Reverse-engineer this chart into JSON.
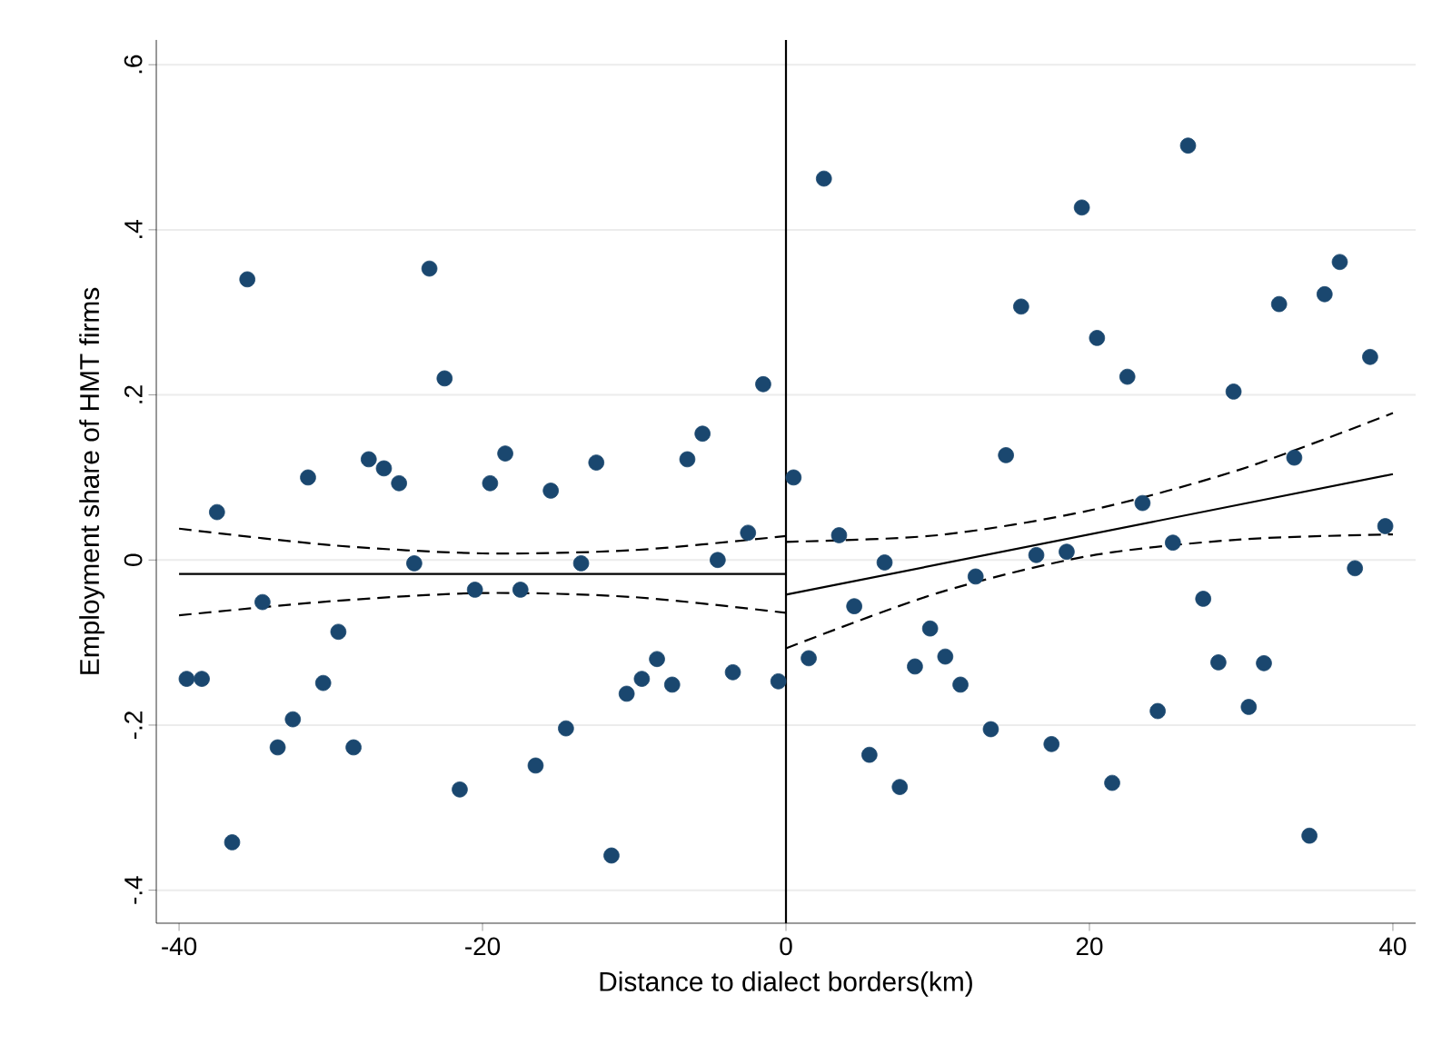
{
  "chart_data": {
    "type": "scatter",
    "xlabel": "Distance to dialect borders(km)",
    "ylabel": "Employment share of HMT firms",
    "xlim": [
      -41.5,
      41.5
    ],
    "ylim": [
      -0.44,
      0.63
    ],
    "xticks": [
      -40,
      -20,
      0,
      20,
      40
    ],
    "yticks": [
      {
        "value": -0.4,
        "label": "-.4"
      },
      {
        "value": -0.2,
        "label": "-.2"
      },
      0,
      {
        "value": 0.2,
        "label": ".2"
      },
      {
        "value": 0.4,
        "label": ".4"
      },
      {
        "value": 0.6,
        "label": ".6"
      }
    ],
    "grid": "y",
    "marker": "circle",
    "ref_lines": [
      {
        "axis": "x",
        "value": 0,
        "color": "#000000"
      }
    ],
    "series": [
      {
        "color": "#1a476f",
        "x": [
          -39.5,
          -38.5,
          -37.5,
          -36.5,
          -35.5,
          -34.5,
          -33.5,
          -32.5,
          -31.5,
          -30.5,
          -29.5,
          -28.5,
          -27.5,
          -26.5,
          -25.5,
          -24.5,
          -23.5,
          -22.5,
          -21.5,
          -20.5,
          -19.5,
          -18.5,
          -17.5,
          -16.5,
          -15.5,
          -14.5,
          -13.5,
          -12.5,
          -11.5,
          -10.5,
          -9.5,
          -8.5,
          -7.5,
          -6.5,
          -5.5,
          -4.5,
          -3.5,
          -2.5,
          -1.5,
          -0.5
        ],
        "values": [
          -0.144,
          -0.144,
          0.058,
          -0.342,
          0.34,
          -0.051,
          -0.227,
          -0.193,
          0.1,
          -0.149,
          -0.087,
          -0.227,
          0.122,
          0.111,
          0.093,
          -0.004,
          0.353,
          0.22,
          -0.278,
          -0.036,
          0.093,
          0.129,
          -0.036,
          -0.249,
          0.084,
          -0.204,
          -0.004,
          0.118,
          -0.358,
          -0.162,
          -0.144,
          -0.12,
          -0.151,
          0.122,
          0.153,
          0.0,
          -0.136,
          0.033,
          0.213,
          -0.147
        ]
      },
      {
        "color": "#1a476f",
        "x": [
          0.5,
          1.5,
          2.5,
          3.5,
          4.5,
          5.5,
          6.5,
          7.5,
          8.5,
          9.5,
          10.5,
          11.5,
          12.5,
          13.5,
          14.5,
          15.5,
          16.5,
          17.5,
          18.5,
          19.5,
          20.5,
          21.5,
          22.5,
          23.5,
          24.5,
          25.5,
          26.5,
          27.5,
          28.5,
          29.5,
          30.5,
          31.5,
          32.5,
          33.5,
          34.5,
          35.5,
          36.5,
          37.5,
          38.5,
          39.5
        ],
        "values": [
          0.1,
          -0.119,
          0.462,
          0.03,
          -0.056,
          -0.236,
          -0.003,
          -0.275,
          -0.129,
          -0.083,
          -0.117,
          -0.151,
          -0.02,
          -0.205,
          0.127,
          0.307,
          0.006,
          -0.223,
          0.01,
          0.427,
          0.269,
          -0.27,
          0.222,
          0.069,
          -0.183,
          0.021,
          0.502,
          -0.047,
          -0.124,
          0.204,
          -0.178,
          -0.125,
          0.31,
          0.124,
          -0.334,
          0.322,
          0.361,
          -0.01,
          0.246,
          0.041
        ]
      },
      {
        "type": "line",
        "marker": "none",
        "line_style": "solid",
        "color": "#000000",
        "x": [
          -40,
          0
        ],
        "values": [
          -0.017,
          -0.017
        ]
      },
      {
        "type": "line",
        "marker": "none",
        "line_style": "dashed",
        "color": "#000000",
        "x": [
          -40,
          -30,
          -20,
          -10,
          0
        ],
        "values": [
          0.038,
          0.018,
          0.008,
          0.012,
          0.029
        ]
      },
      {
        "type": "line",
        "marker": "none",
        "line_style": "dashed",
        "color": "#000000",
        "x": [
          -40,
          -30,
          -20,
          -10,
          0
        ],
        "values": [
          -0.067,
          -0.05,
          -0.04,
          -0.045,
          -0.064
        ]
      },
      {
        "type": "line",
        "marker": "none",
        "line_style": "solid",
        "color": "#000000",
        "x": [
          0,
          40
        ],
        "values": [
          -0.042,
          0.104
        ]
      },
      {
        "type": "line",
        "marker": "none",
        "line_style": "dashed",
        "color": "#000000",
        "x": [
          0,
          10,
          20,
          30,
          40
        ],
        "values": [
          0.022,
          0.03,
          0.06,
          0.11,
          0.178
        ]
      },
      {
        "type": "line",
        "marker": "none",
        "line_style": "dashed",
        "color": "#000000",
        "x": [
          0,
          10,
          20,
          30,
          40
        ],
        "values": [
          -0.107,
          -0.04,
          0.005,
          0.025,
          0.031
        ]
      }
    ]
  }
}
